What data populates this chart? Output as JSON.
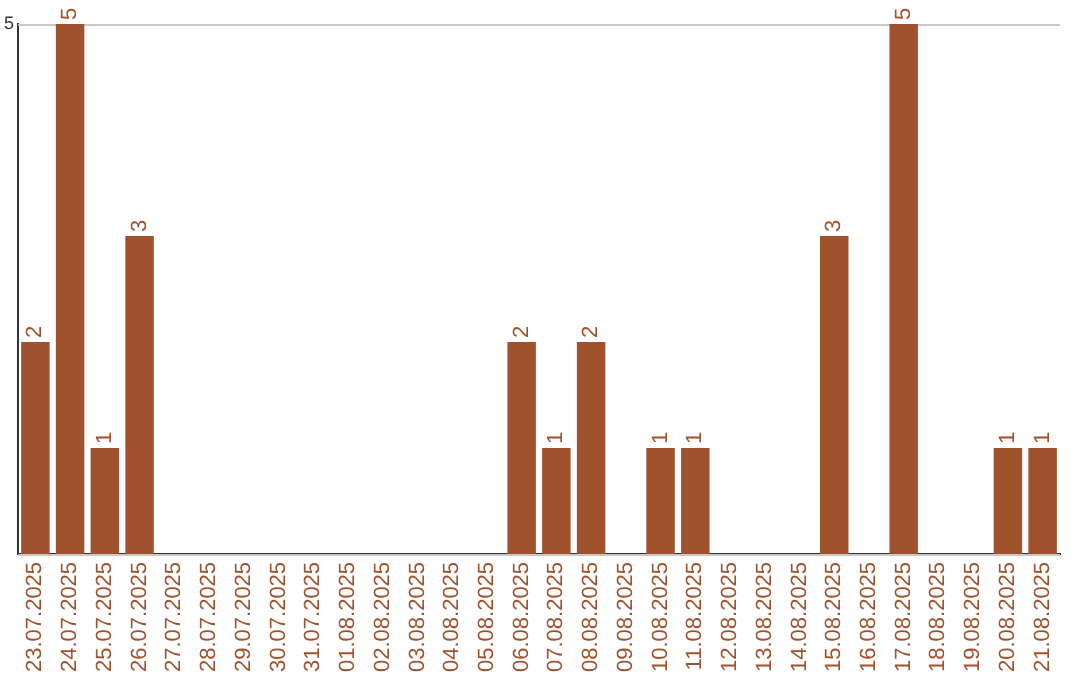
{
  "chart_data": {
    "type": "bar",
    "categories": [
      "23.07.2025",
      "24.07.2025",
      "25.07.2025",
      "26.07.2025",
      "27.07.2025",
      "28.07.2025",
      "29.07.2025",
      "30.07.2025",
      "31.07.2025",
      "01.08.2025",
      "02.08.2025",
      "03.08.2025",
      "04.08.2025",
      "05.08.2025",
      "06.08.2025",
      "07.08.2025",
      "08.08.2025",
      "09.08.2025",
      "10.08.2025",
      "11.08.2025",
      "12.08.2025",
      "13.08.2025",
      "14.08.2025",
      "15.08.2025",
      "16.08.2025",
      "17.08.2025",
      "18.08.2025",
      "19.08.2025",
      "20.08.2025",
      "21.08.2025"
    ],
    "values": [
      2,
      5,
      1,
      3,
      0,
      0,
      0,
      0,
      0,
      0,
      0,
      0,
      0,
      0,
      2,
      1,
      2,
      0,
      1,
      1,
      0,
      0,
      0,
      3,
      0,
      5,
      0,
      0,
      1,
      1
    ],
    "value_labels": [
      "2",
      "5",
      "1",
      "3",
      null,
      null,
      null,
      null,
      null,
      null,
      null,
      null,
      null,
      null,
      "2",
      "1",
      "2",
      null,
      "1",
      "1",
      null,
      null,
      null,
      "3",
      null,
      "5",
      null,
      null,
      "1",
      "1"
    ],
    "color": "#a0522d",
    "ylim": [
      0,
      5
    ],
    "yticks": [
      {
        "value": 0,
        "label": null
      },
      5
    ],
    "grid": "y",
    "legend": false
  }
}
